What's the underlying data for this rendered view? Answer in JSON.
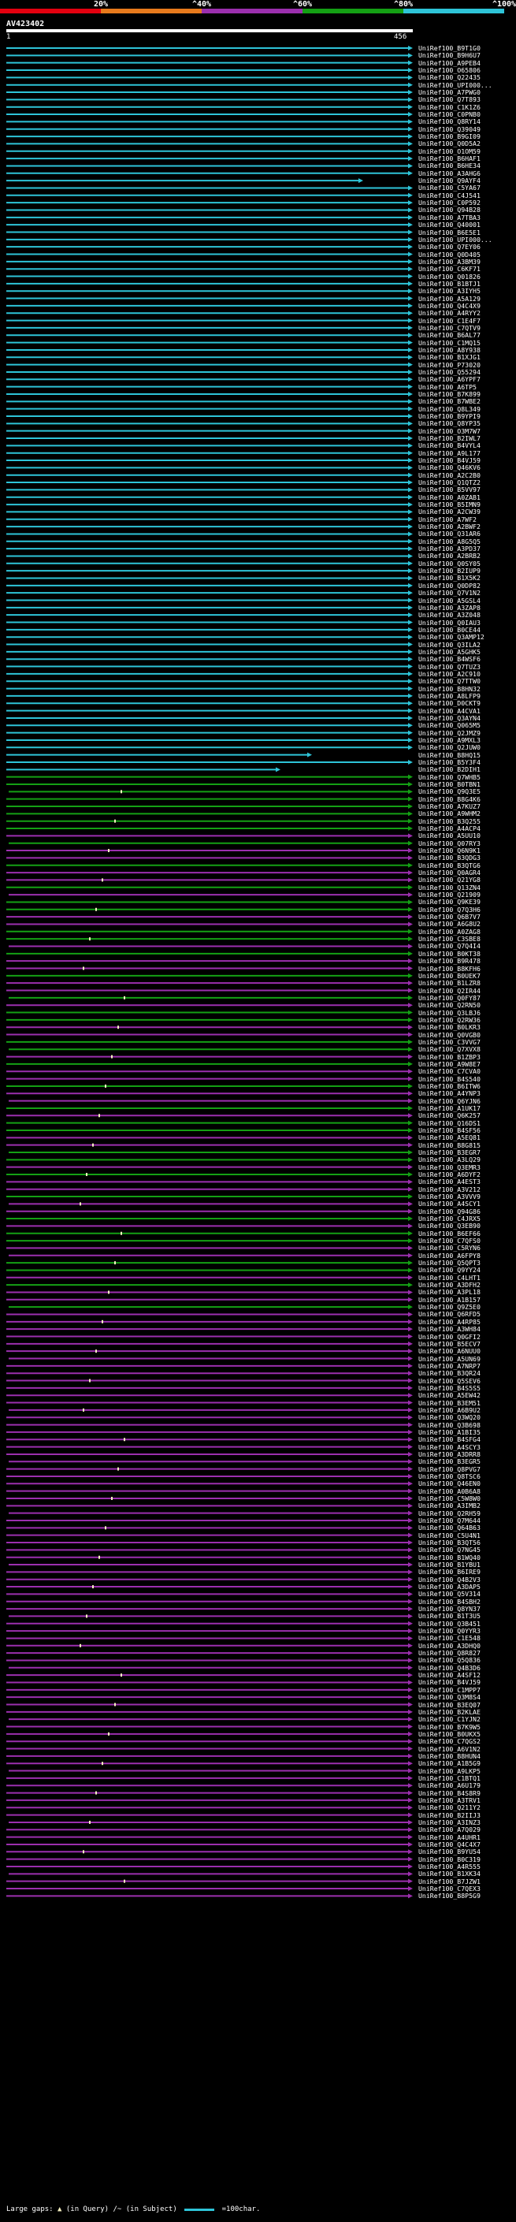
{
  "scale": {
    "ticks": [
      "20%",
      "^40%",
      "^60%",
      "^80%",
      "^100%"
    ],
    "colors": [
      "#e3000f",
      "#e87a1c",
      "#9b2fae",
      "#14a014",
      "#2ec4d8"
    ]
  },
  "query": {
    "id": "AV423402",
    "start": "1",
    "end": "456"
  },
  "hits": [
    "UniRef100_B9T1G0",
    "UniRef100_B9H6U7",
    "UniRef100_A9PEB4",
    "UniRef100_O65806",
    "UniRef100_Q22435",
    "UniRef100_UPI000...",
    "UniRef100_A7PWG0",
    "UniRef100_Q7T893",
    "UniRef100_C1K1Z6",
    "UniRef100_C0PNB0",
    "UniRef100_Q8RY14",
    "UniRef100_Q39049",
    "UniRef100_B9GI09",
    "UniRef100_Q0D5A2",
    "UniRef100_O1OM59",
    "UniRef100_B6HAF1",
    "UniRef100_B6HE34",
    "UniRef100_A3AHG6",
    "UniRef100_Q9AYF4",
    "UniRef100_C5YA67",
    "UniRef100_C4J541",
    "UniRef100_C0P592",
    "UniRef100_Q94B28",
    "UniRef100_A7TBA3",
    "UniRef100_Q40001",
    "UniRef100_B6E5E1",
    "UniRef100_UPI000...",
    "UniRef100_Q7EY06",
    "UniRef100_Q0D405",
    "UniRef100_A3BM39",
    "UniRef100_C6KF71",
    "UniRef100_Q01826",
    "UniRef100_B1BTJ1",
    "UniRef100_A3IYH5",
    "UniRef100_A5A129",
    "UniRef100_Q4C4X9",
    "UniRef100_A4RYY2",
    "UniRef100_C1E4F7",
    "UniRef100_C7QTV9",
    "UniRef100_B6AL77",
    "UniRef100_C1MQ15",
    "UniRef100_A8Y938",
    "UniRef100_B1XJG1",
    "UniRef100_P73020",
    "UniRef100_Q55294",
    "UniRef100_A6YPF7",
    "UniRef100_A6TP5",
    "UniRef100_B7K899",
    "UniRef100_B7WBE2",
    "UniRef100_Q8L349",
    "UniRef100_B9YPI9",
    "UniRef100_Q8YP35",
    "UniRef100_O3M7W7",
    "UniRef100_B2IWL7",
    "UniRef100_B4VYL4",
    "UniRef100_A9L177",
    "UniRef100_B4VJ59",
    "UniRef100_Q46KV6",
    "UniRef100_A2C2B0",
    "UniRef100_Q1QTZ2",
    "UniRef100_B5VV97",
    "UniRef100_A0ZAB1",
    "UniRef100_B5IMN9",
    "UniRef100_A2CW39",
    "UniRef100_A7WF2",
    "UniRef100_A2BWF2",
    "UniRef100_Q31AR6",
    "UniRef100_A8G5Q5",
    "UniRef100_A3PD37",
    "UniRef100_A2BRB2",
    "UniRef100_Q0SY05",
    "UniRef100_B2IUP9",
    "UniRef100_B1X5K2",
    "UniRef100_Q0DP82",
    "UniRef100_Q7V1N2",
    "UniRef100_A5GSL4",
    "UniRef100_A3ZAP8",
    "UniRef100_A3Z048",
    "UniRef100_Q0IAU3",
    "UniRef100_B0CE44",
    "UniRef100_Q3AMP12",
    "UniRef100_Q3ILA2",
    "UniRef100_A5GHK5",
    "UniRef100_B4WSF6",
    "UniRef100_Q7TUZ3",
    "UniRef100_A2C910",
    "UniRef100_Q7TTW0",
    "UniRef100_B8HN32",
    "UniRef100_A8LFP9",
    "UniRef100_D0CKT9",
    "UniRef100_A4CVA1",
    "UniRef100_Q3AYN4",
    "UniRef100_Q065M5",
    "UniRef100_Q2JMZ9",
    "UniRef100_A9MXL3",
    "UniRef100_Q2JUW0",
    "UniRef100_B8HQ15",
    "UniRef100_B5Y3F4",
    "UniRef100_B2DIH1",
    "UniRef100_Q7WHB5",
    "UniRef100_B0TBN1",
    "UniRef100_Q9Q3E5",
    "UniRef100_B8G4K6",
    "UniRef100_A7KUZ7",
    "UniRef100_A9WHM2",
    "UniRef100_B3Q255",
    "UniRef100_A4ACP4",
    "UniRef100_A5UU10",
    "UniRef100_Q07RY3",
    "UniRef100_Q6N9K1",
    "UniRef100_B3QDG3",
    "UniRef100_B3QTG6",
    "UniRef100_Q0AGR4",
    "UniRef100_Q21YG8",
    "UniRef100_Q13ZN4",
    "UniRef100_Q21909",
    "UniRef100_Q9KE39",
    "UniRef100_Q7Q3H6",
    "UniRef100_Q6B7V7",
    "UniRef100_A6G8U2",
    "UniRef100_A0ZAG8",
    "UniRef100_C3SBE8",
    "UniRef100_Q7Q4I4",
    "UniRef100_B0KT38",
    "UniRef100_B9R478",
    "UniRef100_B8KFH6",
    "UniRef100_B0UEK7",
    "UniRef100_B1LZR8",
    "UniRef100_Q2IR44",
    "UniRef100_Q0FY87",
    "UniRef100_Q2RN50",
    "UniRef100_Q3LBJ6",
    "UniRef100_Q2RW36",
    "UniRef100_B0LKR3",
    "UniRef100_Q0VGB0",
    "UniRef100_C3VVG7",
    "UniRef100_Q7XVX8",
    "UniRef100_B1ZBP3",
    "UniRef100_A9W8E7",
    "UniRef100_C7CVA0",
    "UniRef100_B4S540",
    "UniRef100_B6ITW6",
    "UniRef100_A4YNP3",
    "UniRef100_Q6YJN6",
    "UniRef100_A1UK17",
    "UniRef100_Q6K257",
    "UniRef100_Q16DS1",
    "UniRef100_B4SF56",
    "UniRef100_A5EQ81",
    "UniRef100_B8G815",
    "UniRef100_B3EGR7",
    "UniRef100_A3LQ29",
    "UniRef100_Q3EMR3",
    "UniRef100_A6DYF2",
    "UniRef100_A4EST3",
    "UniRef100_A3V212",
    "UniRef100_A3VVV9",
    "UniRef100_A4SCY1",
    "UniRef100_Q94G86",
    "UniRef100_C4JRX5",
    "UniRef100_Q3EB90",
    "UniRef100_B6EF66",
    "UniRef100_C7QFS0",
    "UniRef100_C5RYN6",
    "UniRef100_A6FPY8",
    "UniRef100_Q5QPT3",
    "UniRef100_Q9YY24",
    "UniRef100_C4LHT1",
    "UniRef100_A3DFH2",
    "UniRef100_A3PL18",
    "UniRef100_A1B157",
    "UniRef100_Q9Z5E0",
    "UniRef100_Q6RFD5",
    "UniRef100_A4RP85",
    "UniRef100_A3WH84",
    "UniRef100_Q0GFI2",
    "UniRef100_B5ECV7",
    "UniRef100_A6NUU0",
    "UniRef100_A5UN69",
    "UniRef100_A7NRP7",
    "UniRef100_B3QR24",
    "UniRef100_Q5SEV6",
    "UniRef100_B4S5S5",
    "UniRef100_A5EW42",
    "UniRef100_B3EM51",
    "UniRef100_A6B9U2",
    "UniRef100_Q3WQ20",
    "UniRef100_Q3B698",
    "UniRef100_A1BI35",
    "UniRef100_B4SFG4",
    "UniRef100_A4SCY3",
    "UniRef100_A3DRR8",
    "UniRef100_B3EGR5",
    "UniRef100_Q8PVG7",
    "UniRef100_Q8TSC6",
    "UniRef100_Q46EN0",
    "UniRef100_A0B6A8",
    "UniRef100_C5W8W0",
    "UniRef100_A3IMB2",
    "UniRef100_Q2RH59",
    "UniRef100_Q7M644",
    "UniRef100_Q64B63",
    "UniRef100_C5U4N1",
    "UniRef100_B3QT56",
    "UniRef100_Q7NG45",
    "UniRef100_B1WQ40",
    "UniRef100_B1YBU1",
    "UniRef100_B6IRE9",
    "UniRef100_Q4B2V3",
    "UniRef100_A3DAP5",
    "UniRef100_Q5V314",
    "UniRef100_B4SBH2",
    "UniRef100_Q8YN37",
    "UniRef100_B1T3U5",
    "UniRef100_Q3B451",
    "UniRef100_Q0YYR3",
    "UniRef100_C1E548",
    "UniRef100_A3DHQ0",
    "UniRef100_Q8R827",
    "UniRef100_Q5Q836",
    "UniRef100_Q4B3D6",
    "UniRef100_A4SF12",
    "UniRef100_B4VJ59",
    "UniRef100_C1MPP7",
    "UniRef100_Q3M8S4",
    "UniRef100_B3EQ07",
    "UniRef100_B2KLAE",
    "UniRef100_C1YJN2",
    "UniRef100_B7K9W5",
    "UniRef100_B0UKX5",
    "UniRef100_C7QGS2",
    "UniRef100_A6V1N2",
    "UniRef100_B8HUN4",
    "UniRef100_A1B5G9",
    "UniRef100_A9LKP5",
    "UniRef100_C1BTQ1",
    "UniRef100_A6U179",
    "UniRef100_B4S8R9",
    "UniRef100_A3TRV1",
    "UniRef100_Q211Y2",
    "UniRef100_B2IIJ3",
    "UniRef100_A3INZ3",
    "UniRef100_A7Q029",
    "UniRef100_A4UHR1",
    "UniRef100_Q4C4X7",
    "UniRef100_B9YU54",
    "UniRef100_B0C319",
    "UniRef100_A4R555",
    "UniRef100_B1XK34",
    "UniRef100_B7JZW1",
    "UniRef100_C7QEX3",
    "UniRef100_B8P5G9"
  ],
  "footer": {
    "large_gaps_label": "Large gaps:",
    "query_gap_symbol": "▲",
    "query_gap_text": "(in Query)",
    "subject_gap_symbol": "/~",
    "subject_gap_text": "(in Subject)",
    "legend_text": "=100char."
  }
}
